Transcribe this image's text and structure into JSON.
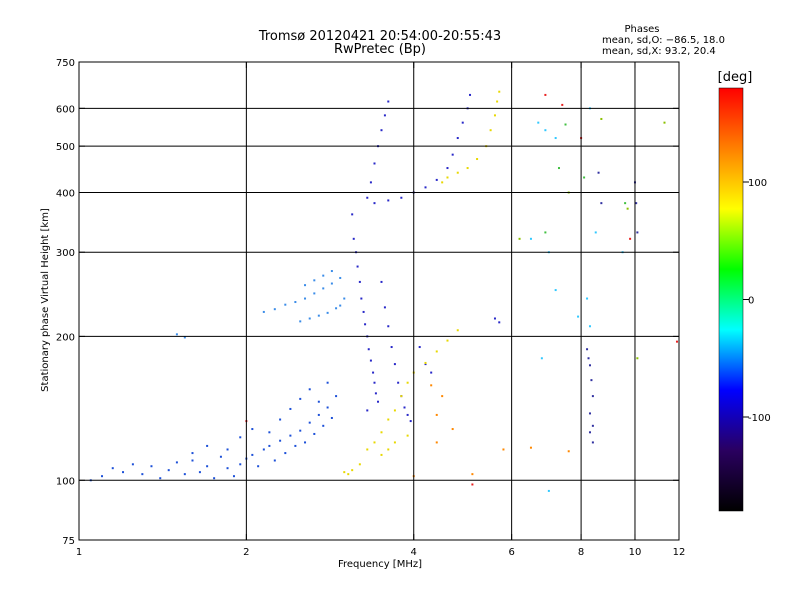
{
  "chart_data": {
    "type": "scatter",
    "title": "Tromsø 20120421 20:54:00-20:55:43",
    "subtitle": "RwPretec (Bp)",
    "xlabel": "Frequency [MHz]",
    "ylabel": "Stationary phase Virtual Height [km]",
    "x_scale": "log",
    "y_scale": "log",
    "xlim": [
      1,
      12
    ],
    "ylim": [
      75,
      750
    ],
    "x_ticks": [
      1,
      2,
      4,
      6,
      8,
      10,
      12
    ],
    "x_tick_labels": [
      "1",
      "2",
      "4",
      "6",
      "8",
      "10",
      "12"
    ],
    "x_grid_lines": [
      2,
      4,
      6,
      8,
      10
    ],
    "y_ticks": [
      75,
      100,
      200,
      300,
      400,
      500,
      600,
      750
    ],
    "y_tick_labels": [
      "75",
      "100",
      "200",
      "300",
      "400",
      "500",
      "600",
      "750"
    ],
    "y_grid_lines": [
      100,
      200,
      300,
      400,
      500,
      600
    ],
    "grid": true,
    "stats": {
      "heading": "Phases",
      "line1": "mean, sd,O: −86.5, 18.0",
      "line2": "mean, sd,X:  93.2, 20.4"
    },
    "colorbar": {
      "label": "[deg]",
      "range": [
        -180,
        180
      ],
      "ticks": [
        100,
        0,
        -100
      ],
      "tick_labels": [
        "100",
        "0",
        "-100"
      ],
      "colors": [
        "#ff0000",
        "#ff8000",
        "#ffff00",
        "#00ff00",
        "#00ffff",
        "#0000ff",
        "#2a0060",
        "#000000"
      ]
    },
    "series": [
      {
        "color": "#1c50d8",
        "points": [
          [
            1.05,
            100
          ],
          [
            1.1,
            102
          ],
          [
            1.15,
            106
          ],
          [
            1.2,
            104
          ],
          [
            1.25,
            108
          ],
          [
            1.3,
            103
          ],
          [
            1.35,
            107
          ],
          [
            1.4,
            101
          ],
          [
            1.45,
            105
          ],
          [
            1.5,
            109
          ],
          [
            1.55,
            103
          ],
          [
            1.6,
            110
          ],
          [
            1.65,
            104
          ],
          [
            1.7,
            107
          ],
          [
            1.75,
            101
          ],
          [
            1.8,
            112
          ],
          [
            1.85,
            106
          ],
          [
            1.9,
            102
          ],
          [
            1.95,
            108
          ],
          [
            2.0,
            111
          ],
          [
            2.05,
            113
          ],
          [
            2.1,
            107
          ],
          [
            2.15,
            116
          ],
          [
            2.2,
            118
          ],
          [
            2.25,
            110
          ],
          [
            2.3,
            121
          ],
          [
            2.35,
            114
          ],
          [
            2.4,
            124
          ],
          [
            2.45,
            118
          ],
          [
            2.5,
            127
          ],
          [
            2.55,
            120
          ],
          [
            2.6,
            132
          ],
          [
            2.65,
            125
          ],
          [
            2.7,
            137
          ],
          [
            2.75,
            130
          ],
          [
            2.8,
            142
          ],
          [
            2.85,
            135
          ],
          [
            2.9,
            150
          ],
          [
            1.85,
            116
          ],
          [
            1.95,
            123
          ],
          [
            2.05,
            128
          ],
          [
            2.2,
            126
          ],
          [
            2.3,
            134
          ],
          [
            2.4,
            141
          ],
          [
            2.5,
            148
          ],
          [
            2.6,
            155
          ],
          [
            2.7,
            146
          ],
          [
            2.8,
            160
          ],
          [
            1.7,
            118
          ],
          [
            1.6,
            114
          ]
        ]
      },
      {
        "color": "#3a8ce8",
        "points": [
          [
            2.15,
            225
          ],
          [
            2.25,
            228
          ],
          [
            2.35,
            233
          ],
          [
            2.45,
            236
          ],
          [
            2.55,
            240
          ],
          [
            2.65,
            246
          ],
          [
            2.75,
            252
          ],
          [
            2.85,
            258
          ],
          [
            2.95,
            265
          ],
          [
            2.5,
            215
          ],
          [
            2.6,
            218
          ],
          [
            2.7,
            221
          ],
          [
            2.8,
            224
          ],
          [
            2.9,
            229
          ],
          [
            2.55,
            256
          ],
          [
            2.65,
            262
          ],
          [
            2.75,
            268
          ],
          [
            2.85,
            274
          ],
          [
            1.5,
            202
          ],
          [
            1.55,
            199
          ],
          [
            3.0,
            240
          ],
          [
            2.95,
            232
          ]
        ]
      },
      {
        "color": "#2828c8",
        "points": [
          [
            3.1,
            360
          ],
          [
            3.12,
            320
          ],
          [
            3.15,
            300
          ],
          [
            3.17,
            280
          ],
          [
            3.2,
            260
          ],
          [
            3.22,
            240
          ],
          [
            3.25,
            225
          ],
          [
            3.27,
            212
          ],
          [
            3.3,
            200
          ],
          [
            3.32,
            188
          ],
          [
            3.35,
            178
          ],
          [
            3.38,
            168
          ],
          [
            3.4,
            160
          ],
          [
            3.42,
            152
          ],
          [
            3.45,
            146
          ],
          [
            3.3,
            390
          ],
          [
            3.35,
            420
          ],
          [
            3.4,
            460
          ],
          [
            3.45,
            500
          ],
          [
            3.5,
            540
          ],
          [
            3.55,
            580
          ],
          [
            3.6,
            620
          ],
          [
            3.4,
            380
          ],
          [
            3.6,
            385
          ],
          [
            3.8,
            390
          ],
          [
            4.0,
            400
          ],
          [
            4.2,
            410
          ],
          [
            4.4,
            425
          ],
          [
            4.6,
            450
          ],
          [
            4.7,
            480
          ],
          [
            4.8,
            520
          ],
          [
            4.9,
            560
          ],
          [
            5.0,
            600
          ],
          [
            5.05,
            640
          ],
          [
            3.5,
            260
          ],
          [
            3.55,
            230
          ],
          [
            3.6,
            210
          ],
          [
            3.65,
            190
          ],
          [
            3.7,
            175
          ],
          [
            3.75,
            160
          ],
          [
            3.8,
            150
          ],
          [
            3.85,
            142
          ],
          [
            3.9,
            137
          ],
          [
            3.95,
            133
          ],
          [
            4.1,
            190
          ],
          [
            4.2,
            175
          ],
          [
            4.3,
            168
          ],
          [
            5.6,
            218
          ],
          [
            5.7,
            214
          ],
          [
            3.3,
            140
          ]
        ]
      },
      {
        "color": "#e8d800",
        "points": [
          [
            3.0,
            104
          ],
          [
            3.05,
            103
          ],
          [
            3.1,
            105
          ],
          [
            3.2,
            108
          ],
          [
            3.3,
            116
          ],
          [
            3.4,
            120
          ],
          [
            3.5,
            126
          ],
          [
            3.6,
            134
          ],
          [
            3.7,
            140
          ],
          [
            3.8,
            150
          ],
          [
            3.9,
            160
          ],
          [
            4.0,
            168
          ],
          [
            4.2,
            176
          ],
          [
            4.4,
            186
          ],
          [
            4.6,
            196
          ],
          [
            4.8,
            206
          ],
          [
            4.5,
            420
          ],
          [
            4.6,
            430
          ],
          [
            4.8,
            440
          ],
          [
            5.0,
            450
          ],
          [
            5.2,
            470
          ],
          [
            5.4,
            500
          ],
          [
            5.5,
            540
          ],
          [
            5.6,
            580
          ],
          [
            5.65,
            620
          ],
          [
            5.7,
            650
          ],
          [
            3.6,
            116
          ],
          [
            3.7,
            120
          ],
          [
            3.5,
            113
          ],
          [
            3.9,
            124
          ]
        ]
      },
      {
        "color": "#30c8ff",
        "points": [
          [
            6.7,
            560
          ],
          [
            6.9,
            540
          ],
          [
            7.2,
            520
          ],
          [
            8.3,
            600
          ],
          [
            6.5,
            320
          ],
          [
            7.0,
            300
          ],
          [
            7.2,
            250
          ],
          [
            7.9,
            220
          ],
          [
            8.2,
            240
          ],
          [
            6.8,
            180
          ],
          [
            7.0,
            95
          ],
          [
            8.3,
            210
          ],
          [
            8.5,
            330
          ],
          [
            9.5,
            300
          ]
        ]
      },
      {
        "color": "#40c040",
        "points": [
          [
            7.5,
            555
          ],
          [
            7.3,
            450
          ],
          [
            8.1,
            430
          ],
          [
            6.9,
            330
          ],
          [
            9.6,
            380
          ]
        ]
      },
      {
        "color": "#e82020",
        "points": [
          [
            6.9,
            640
          ],
          [
            7.4,
            610
          ],
          [
            8.0,
            520
          ],
          [
            5.1,
            98
          ],
          [
            2.0,
            133
          ],
          [
            9.8,
            320
          ],
          [
            11.9,
            195
          ]
        ]
      },
      {
        "color": "#8ac000",
        "points": [
          [
            6.2,
            320
          ],
          [
            7.6,
            400
          ],
          [
            8.7,
            570
          ],
          [
            10.1,
            180
          ],
          [
            11.3,
            560
          ],
          [
            9.7,
            370
          ]
        ]
      },
      {
        "color": "#3030a0",
        "points": [
          [
            8.2,
            188
          ],
          [
            8.25,
            180
          ],
          [
            8.3,
            174
          ],
          [
            8.35,
            162
          ],
          [
            8.4,
            150
          ],
          [
            8.3,
            138
          ],
          [
            8.4,
            130
          ],
          [
            8.3,
            126
          ],
          [
            8.4,
            120
          ],
          [
            10.0,
            420
          ],
          [
            10.05,
            380
          ],
          [
            10.1,
            330
          ],
          [
            8.6,
            440
          ],
          [
            8.7,
            380
          ]
        ]
      },
      {
        "color": "#ff8800",
        "points": [
          [
            4.3,
            158
          ],
          [
            4.5,
            150
          ],
          [
            4.4,
            137
          ],
          [
            4.7,
            128
          ],
          [
            5.8,
            116
          ],
          [
            6.5,
            117
          ],
          [
            7.6,
            115
          ],
          [
            5.1,
            103
          ],
          [
            4.0,
            102
          ],
          [
            4.4,
            120
          ]
        ]
      }
    ]
  }
}
